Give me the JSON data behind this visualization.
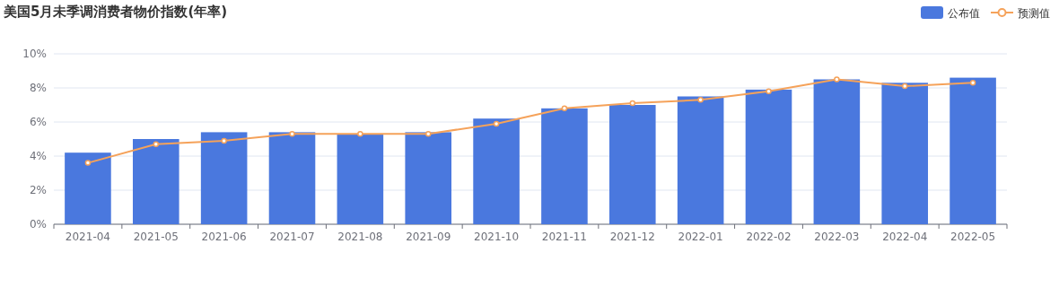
{
  "chart_data": {
    "type": "bar",
    "title": "美国5月未季调消费者物价指数(年率)",
    "categories": [
      "2021-04",
      "2021-05",
      "2021-06",
      "2021-07",
      "2021-08",
      "2021-09",
      "2021-10",
      "2021-11",
      "2021-12",
      "2022-01",
      "2022-02",
      "2022-03",
      "2022-04",
      "2022-05"
    ],
    "series": [
      {
        "name": "公布值",
        "color": "#4a78de",
        "values": [
          4.2,
          5.0,
          5.4,
          5.4,
          5.3,
          5.4,
          6.2,
          6.8,
          7.0,
          7.5,
          7.9,
          8.5,
          8.3,
          8.6
        ]
      },
      {
        "name": "预测值",
        "type": "line",
        "color": "#f5a25a",
        "marker": "circle",
        "values": [
          3.6,
          4.7,
          4.9,
          5.3,
          5.3,
          5.3,
          5.9,
          6.8,
          7.1,
          7.3,
          7.8,
          8.5,
          8.1,
          8.3
        ]
      }
    ],
    "ylim": [
      0,
      10
    ],
    "yticks": [
      {
        "value": 0,
        "label": "0%"
      },
      {
        "value": 2,
        "label": "2%"
      },
      {
        "value": 4,
        "label": "4%"
      },
      {
        "value": 6,
        "label": "6%"
      },
      {
        "value": 8,
        "label": "8%"
      },
      {
        "value": 10,
        "label": "10%"
      }
    ],
    "grid": "y",
    "legend": "top right"
  }
}
